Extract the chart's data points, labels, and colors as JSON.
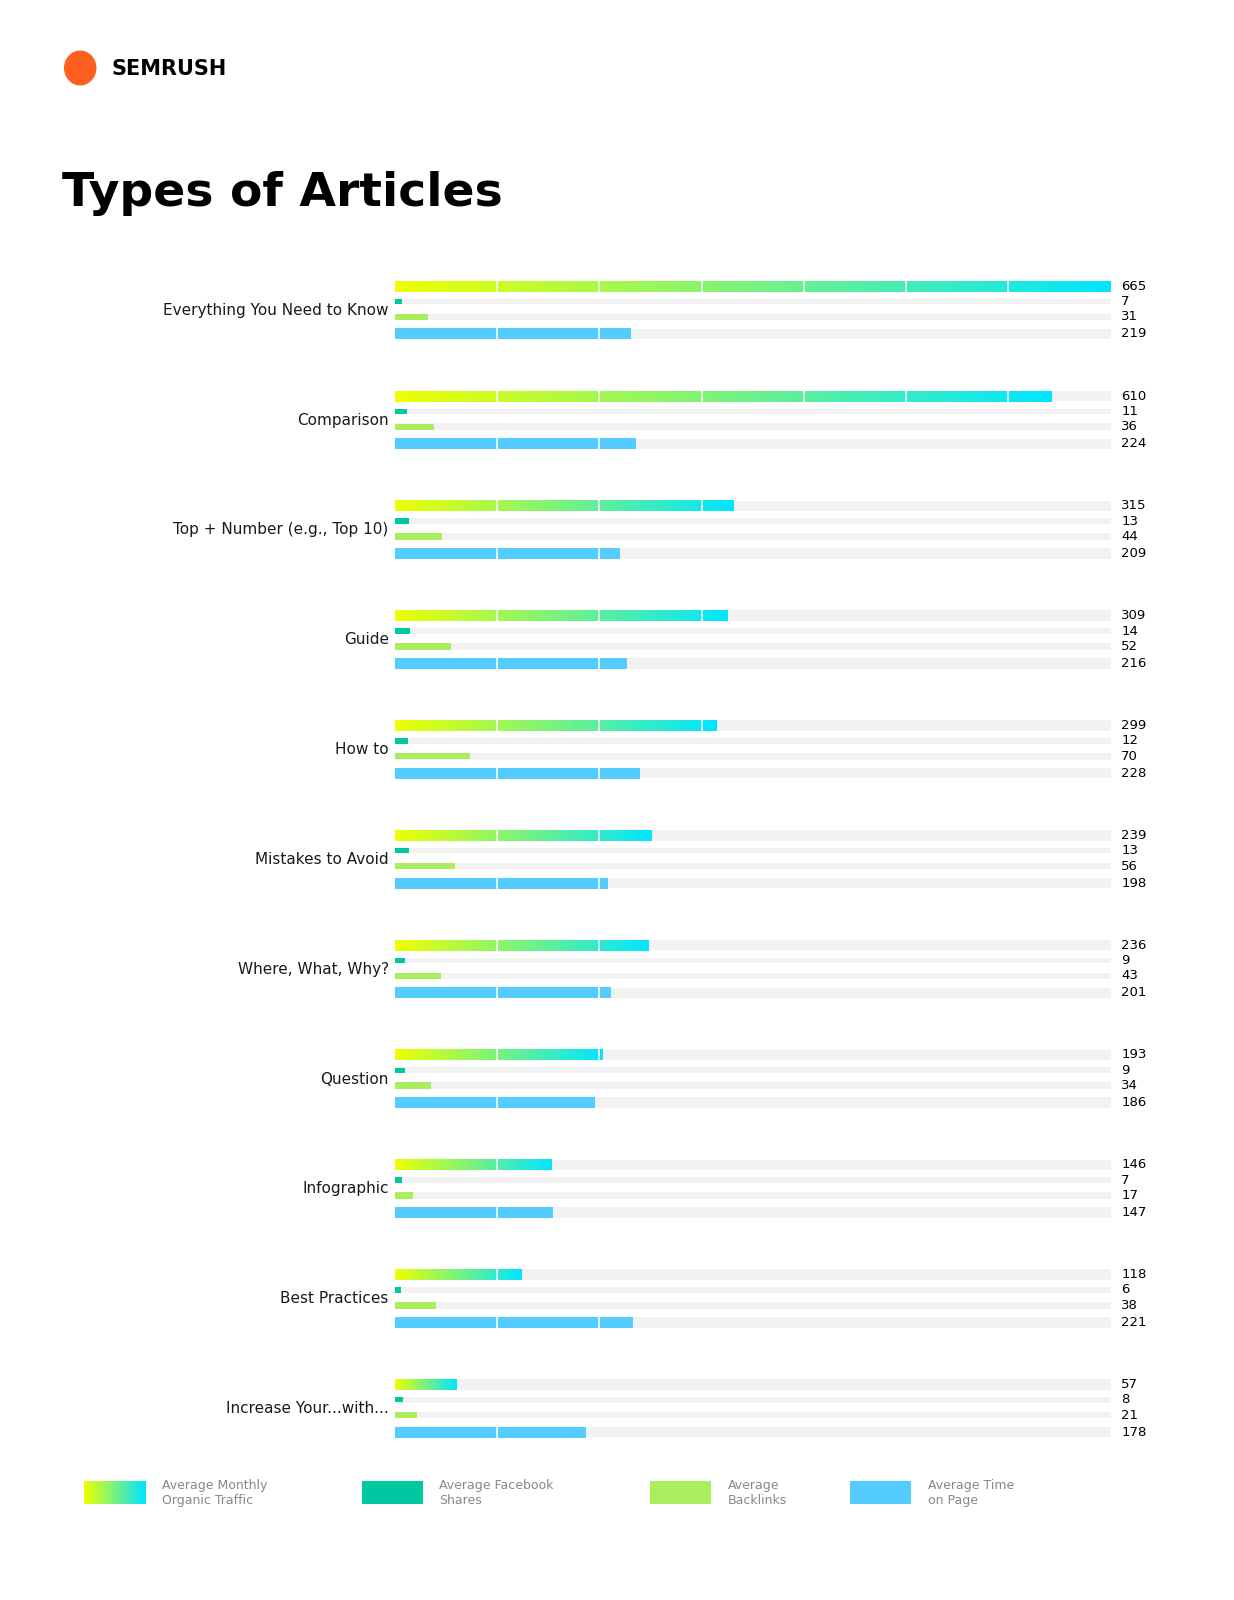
{
  "title": "Types of Articles",
  "categories": [
    "Everything You Need to Know",
    "Comparison",
    "Top + Number (e.g., Top 10)",
    "Guide",
    "How to",
    "Mistakes to Avoid",
    "Where, What, Why?",
    "Question",
    "Infographic",
    "Best Practices",
    "Increase Your...with..."
  ],
  "metrics": {
    "traffic": [
      665,
      610,
      315,
      309,
      299,
      239,
      236,
      193,
      146,
      118,
      57
    ],
    "shares": [
      7,
      11,
      13,
      14,
      12,
      13,
      9,
      9,
      7,
      6,
      8
    ],
    "backlinks": [
      31,
      36,
      44,
      52,
      70,
      56,
      43,
      34,
      17,
      38,
      21
    ],
    "time_on_page": [
      219,
      224,
      209,
      216,
      228,
      198,
      201,
      186,
      147,
      221,
      178
    ]
  },
  "max_val": 665,
  "legend_labels": [
    "Average Monthly\nOrganic Traffic",
    "Average Facebook\nShares",
    "Average\nBacklinks",
    "Average Time\non Page"
  ],
  "traffic_color_start": "#eeff00",
  "traffic_color_end": "#00e5ff",
  "shares_color": "#00c8a0",
  "backlinks_color": "#aaee60",
  "time_color": "#55ccff",
  "bg_color": "#ffffff",
  "bar_bg_color": "#f2f2f2",
  "footer_color": "#111111",
  "text_color": "#1a1a1a"
}
